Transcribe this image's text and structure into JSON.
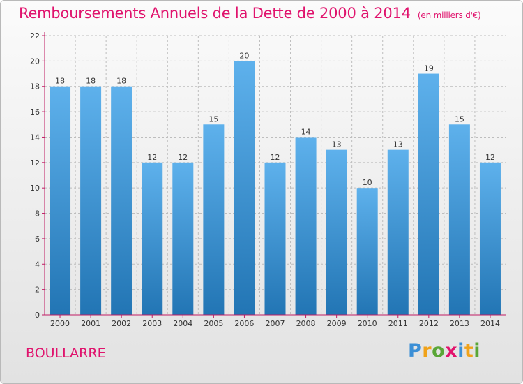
{
  "header": {
    "title": "Remboursements Annuels de la Dette de 2000 à 2014",
    "subtitle": "(en milliers d'€)"
  },
  "footer": {
    "commune": "BOULLARRE",
    "logo_text": "Proxiti"
  },
  "colors": {
    "title": "#e0136d",
    "bar_top": "#5eb1ec",
    "bar_bottom": "#2275b4",
    "axis": "#c01b63",
    "logo": [
      "#3b8fd6",
      "#f0a21a",
      "#5aa637",
      "#e2136d",
      "#3b8fd6",
      "#f0a21a",
      "#5aa637"
    ]
  },
  "chart_data": {
    "type": "bar",
    "title": "Remboursements Annuels de la Dette de 2000 à 2014",
    "subtitle": "(en milliers d'€)",
    "xlabel": "",
    "ylabel": "",
    "categories": [
      "2000",
      "2001",
      "2002",
      "2003",
      "2004",
      "2005",
      "2006",
      "2007",
      "2008",
      "2009",
      "2010",
      "2011",
      "2012",
      "2013",
      "2014"
    ],
    "values": [
      18,
      18,
      18,
      12,
      12,
      15,
      20,
      12,
      14,
      13,
      10,
      13,
      19,
      15,
      12
    ],
    "ylim": [
      0,
      22
    ],
    "yticks": [
      0,
      2,
      4,
      6,
      8,
      10,
      12,
      14,
      16,
      18,
      20,
      22
    ],
    "grid": "horizontal dashed",
    "data_labels": true
  }
}
